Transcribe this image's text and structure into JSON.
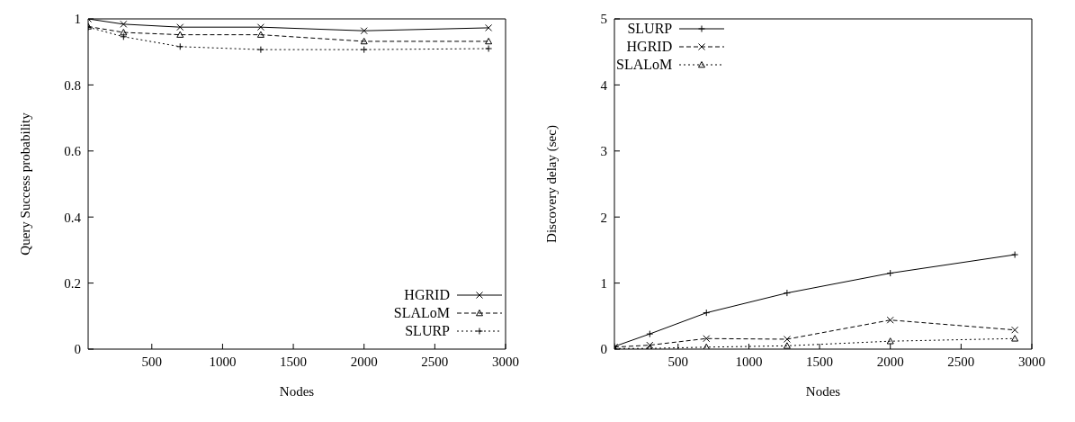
{
  "chart_data": [
    {
      "type": "line",
      "xlabel": "Nodes",
      "ylabel": "Query Success probability",
      "x": [
        50,
        300,
        700,
        1270,
        2000,
        2880
      ],
      "xlim": [
        50,
        3000
      ],
      "xticks": [
        500,
        1000,
        1500,
        2000,
        2500,
        3000
      ],
      "ylim": [
        0,
        1
      ],
      "yticks": [
        0,
        0.2,
        0.4,
        0.6,
        0.8,
        1
      ],
      "legend": "bottom right",
      "series": [
        {
          "name": "HGRID",
          "color": "#000000",
          "marker": "x",
          "line_style": "solid",
          "values": [
            1.0,
            0.984,
            0.975,
            0.975,
            0.964,
            0.973
          ]
        },
        {
          "name": "SLALoM",
          "color": "#000000",
          "marker": "triangle",
          "line_style": "dashed",
          "values": [
            0.977,
            0.959,
            0.952,
            0.952,
            0.932,
            0.932
          ]
        },
        {
          "name": "SLURP",
          "color": "#000000",
          "marker": "cross",
          "line_style": "dotted",
          "values": [
            0.975,
            0.946,
            0.916,
            0.907,
            0.907,
            0.91
          ]
        }
      ]
    },
    {
      "type": "line",
      "xlabel": "Nodes",
      "ylabel": "Discovery delay (sec)",
      "x": [
        50,
        300,
        700,
        1270,
        2000,
        2880
      ],
      "xlim": [
        50,
        3000
      ],
      "xticks": [
        500,
        1000,
        1500,
        2000,
        2500,
        3000
      ],
      "ylim": [
        0,
        5
      ],
      "yticks": [
        0,
        1,
        2,
        3,
        4,
        5
      ],
      "legend": "top left",
      "series": [
        {
          "name": "SLURP",
          "color": "#000000",
          "marker": "cross",
          "line_style": "solid",
          "values": [
            0.04,
            0.23,
            0.55,
            0.85,
            1.15,
            1.43
          ]
        },
        {
          "name": "HGRID",
          "color": "#000000",
          "marker": "x",
          "line_style": "dashed",
          "values": [
            0.03,
            0.06,
            0.16,
            0.15,
            0.44,
            0.29
          ]
        },
        {
          "name": "SLALoM",
          "color": "#000000",
          "marker": "triangle",
          "line_style": "dotted",
          "values": [
            0.01,
            0.01,
            0.03,
            0.05,
            0.12,
            0.16
          ]
        }
      ]
    }
  ]
}
